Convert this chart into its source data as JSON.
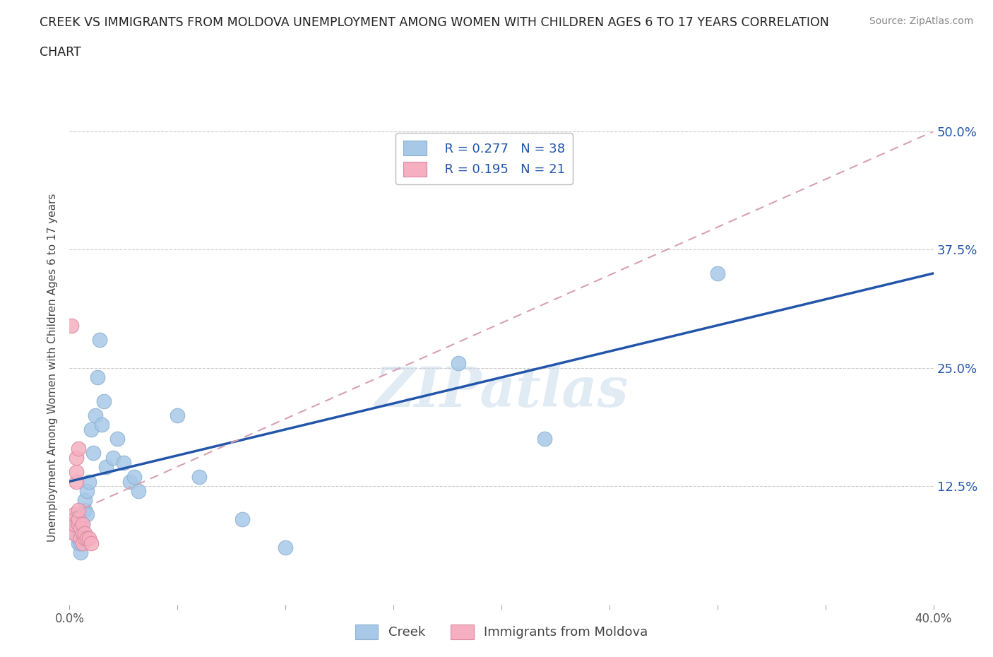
{
  "title_line1": "CREEK VS IMMIGRANTS FROM MOLDOVA UNEMPLOYMENT AMONG WOMEN WITH CHILDREN AGES 6 TO 17 YEARS CORRELATION",
  "title_line2": "CHART",
  "source": "Source: ZipAtlas.com",
  "ylabel": "Unemployment Among Women with Children Ages 6 to 17 years",
  "xlim": [
    0.0,
    0.4
  ],
  "ylim": [
    0.0,
    0.5
  ],
  "ytick_values": [
    0.0,
    0.125,
    0.25,
    0.375,
    0.5
  ],
  "ytick_labels_right": [
    "",
    "12.5%",
    "25.0%",
    "37.5%",
    "50.0%"
  ],
  "creek_color": "#a8c8e8",
  "moldova_color": "#f5afc0",
  "creek_line_color": "#2255aa",
  "moldova_line_color": "#d8a0b0",
  "creek_R": 0.277,
  "creek_N": 38,
  "moldova_R": 0.195,
  "moldova_N": 21,
  "watermark_text": "ZIPatlas",
  "background_color": "#ffffff",
  "creek_x": [
    0.002,
    0.003,
    0.003,
    0.004,
    0.004,
    0.004,
    0.005,
    0.005,
    0.005,
    0.005,
    0.006,
    0.006,
    0.007,
    0.007,
    0.008,
    0.008,
    0.009,
    0.01,
    0.011,
    0.012,
    0.013,
    0.014,
    0.015,
    0.016,
    0.017,
    0.02,
    0.022,
    0.025,
    0.028,
    0.03,
    0.032,
    0.05,
    0.06,
    0.08,
    0.1,
    0.18,
    0.22,
    0.3
  ],
  "creek_y": [
    0.075,
    0.085,
    0.09,
    0.065,
    0.07,
    0.08,
    0.055,
    0.065,
    0.075,
    0.08,
    0.07,
    0.085,
    0.1,
    0.11,
    0.095,
    0.12,
    0.13,
    0.185,
    0.16,
    0.2,
    0.24,
    0.28,
    0.19,
    0.215,
    0.145,
    0.155,
    0.175,
    0.15,
    0.13,
    0.135,
    0.12,
    0.2,
    0.135,
    0.09,
    0.06,
    0.255,
    0.175,
    0.35
  ],
  "moldova_x": [
    0.001,
    0.002,
    0.002,
    0.002,
    0.003,
    0.003,
    0.003,
    0.004,
    0.004,
    0.004,
    0.004,
    0.005,
    0.005,
    0.006,
    0.006,
    0.006,
    0.007,
    0.007,
    0.008,
    0.009,
    0.01
  ],
  "moldova_y": [
    0.295,
    0.075,
    0.085,
    0.095,
    0.13,
    0.14,
    0.155,
    0.165,
    0.085,
    0.09,
    0.1,
    0.07,
    0.08,
    0.065,
    0.075,
    0.085,
    0.07,
    0.075,
    0.07,
    0.07,
    0.065
  ]
}
